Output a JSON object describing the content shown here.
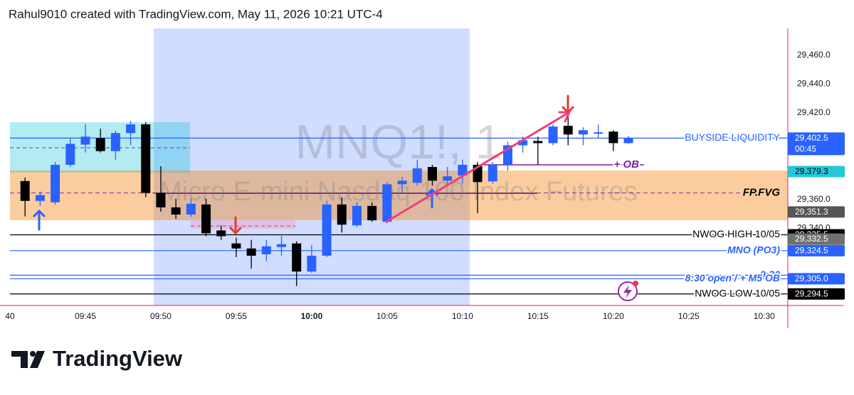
{
  "header": {
    "title": "Rahul9010 created with TradingView.com, May 11, 2026 10:21 UTC-4"
  },
  "chart_data": {
    "type": "candlestick",
    "symbol": "MNQ1!, 1",
    "description": "Micro E-mini Nasdaq-100 Index Futures",
    "countdown": "00:45",
    "up_color": "#2962ff",
    "down_color": "#000000",
    "x": [
      "09:41",
      "09:42",
      "09:43",
      "09:44",
      "09:45",
      "09:46",
      "09:47",
      "09:48",
      "09:49",
      "09:50",
      "09:51",
      "09:52",
      "09:53",
      "09:54",
      "09:55",
      "09:56",
      "09:57",
      "09:58",
      "09:59",
      "10:00",
      "10:01",
      "10:02",
      "10:03",
      "10:04",
      "10:05",
      "10:06",
      "10:07",
      "10:08",
      "10:09",
      "10:10",
      "10:11",
      "10:12",
      "10:13",
      "10:14",
      "10:15",
      "10:16",
      "10:17",
      "10:18",
      "10:19",
      "10:20",
      "10:21"
    ],
    "open": [
      29372.75,
      29359.0,
      29358.0,
      29384.0,
      29398.0,
      29402.5,
      29393.5,
      29406.0,
      29412.0,
      29364.5,
      29354.5,
      29349.5,
      29356.5,
      29338.5,
      29329.5,
      29326.0,
      29322.0,
      29327.0,
      29329.5,
      29310.0,
      29321.0,
      29356.5,
      29342.0,
      29355.5,
      29344.5,
      29370.5,
      29371.5,
      29382.5,
      29373.0,
      29376.5,
      29384.0,
      29372.5,
      29384.0,
      29397.5,
      29400.5,
      29399.0,
      29411.0,
      29405.0,
      29405.5,
      29407.0,
      29399.0
    ],
    "high": [
      29375.25,
      29365.5,
      29386.0,
      29402.5,
      29412.0,
      29409.0,
      29407.5,
      29414.5,
      29413.5,
      29383.0,
      29360.5,
      29360.5,
      29360.5,
      29342.0,
      29333.5,
      29332.0,
      29332.0,
      29336.0,
      29331.0,
      29328.5,
      29359.0,
      29361.5,
      29358.0,
      29358.0,
      29372.0,
      29375.5,
      29387.5,
      29384.0,
      29382.5,
      29387.5,
      29386.0,
      29386.0,
      29400.0,
      29403.5,
      29403.5,
      29412.0,
      29418.5,
      29410.0,
      29412.0,
      29408.0,
      29404.0
    ],
    "low": [
      29348.25,
      29355.5,
      29356.5,
      29382.5,
      29392.5,
      29392.5,
      29387.5,
      29397.5,
      29361.5,
      29351.5,
      29346.5,
      29348.0,
      29334.5,
      29332.0,
      29320.0,
      29312.0,
      29317.0,
      29321.0,
      29300.0,
      29309.0,
      29320.0,
      29337.0,
      29341.0,
      29344.5,
      29343.5,
      29364.5,
      29369.5,
      29369.5,
      29370.5,
      29371.0,
      29350.5,
      29371.0,
      29380.0,
      29392.5,
      29384.0,
      29397.5,
      29397.5,
      29397.5,
      29402.5,
      29393.5,
      29398.5
    ],
    "close": [
      29359.0,
      29363.0,
      29384.0,
      29398.5,
      29403.5,
      29393.5,
      29406.0,
      29412.0,
      29364.5,
      29354.5,
      29349.5,
      29357.0,
      29336.5,
      29334.5,
      29326.0,
      29321.0,
      29327.5,
      29329.0,
      29310.0,
      29321.0,
      29356.5,
      29342.5,
      29355.5,
      29345.5,
      29370.5,
      29373.0,
      29381.5,
      29373.0,
      29376.0,
      29384.0,
      29372.0,
      29384.0,
      29397.5,
      29401.0,
      29399.0,
      29410.5,
      29405.0,
      29408.0,
      29406.5,
      29399.0,
      29402.5
    ],
    "xlim": [
      "09:40",
      "10:31:34"
    ],
    "xticks": [
      {
        "value": "09:40",
        "label": "40"
      },
      "09:45",
      "09:50",
      "09:55",
      "10:00",
      "10:05",
      "10:10",
      "10:15",
      "10:20",
      "10:25",
      "10:30"
    ],
    "ylim": [
      29286.5,
      29478.5
    ],
    "yticks": [
      {
        "value": 29460,
        "label": "29,460.0"
      },
      {
        "value": 29440,
        "label": "29,440.0"
      },
      {
        "value": 29420,
        "label": "29,420.0"
      },
      {
        "value": 29360,
        "label": "29,360.0"
      },
      {
        "value": 29340,
        "label": "29,340.0"
      }
    ],
    "grid": false,
    "levels": [
      {
        "label": "BUYSIDE LIQUIDITY",
        "value": 29402.5,
        "color": "#2962ff"
      },
      {
        "label": "NWOG HIGH 10/05",
        "value": 29335.5,
        "color": "#000000"
      },
      {
        "label": "MNO (PO3)",
        "value": 29324.5,
        "color": "#2962ff",
        "italic": true
      },
      {
        "label": "9:30",
        "value": 29307.5,
        "color": "#2962ff",
        "italic": true
      },
      {
        "label": "8:30 open / + M5 OB",
        "value": 29305.0,
        "color": "#2962ff",
        "italic": true
      },
      {
        "label": "NWOG LOW 10/05",
        "value": 29294.5,
        "color": "#000000"
      }
    ],
    "annotations": [
      {
        "text": "+ OB",
        "value": 29384.0,
        "color": "#7b1fa2"
      },
      {
        "text": "FP.FVG",
        "value": 29364.5,
        "color": "#000000"
      }
    ],
    "price_tags": [
      {
        "value": 29402.5,
        "label": "29,402.5",
        "color": "#2962ff"
      },
      {
        "value": 29379.3,
        "label": "29,379.3",
        "color": "#26c6da",
        "text_color": "#000000"
      },
      {
        "value": 29351.3,
        "label": "29,351.3",
        "color": "#555555"
      },
      {
        "value": 29335.5,
        "label": "29,335.5",
        "color": "#000000"
      },
      {
        "value": 29332.5,
        "label": "29,332.5",
        "color": "#707070"
      },
      {
        "value": 29324.5,
        "label": "29,324.5",
        "color": "#2962ff"
      },
      {
        "value": 29305.0,
        "label": "29,305.0",
        "color": "#2962ff"
      },
      {
        "value": 29294.5,
        "label": "29,294.5",
        "color": "#000000"
      }
    ]
  },
  "footer": {
    "logo": "TradingView"
  }
}
